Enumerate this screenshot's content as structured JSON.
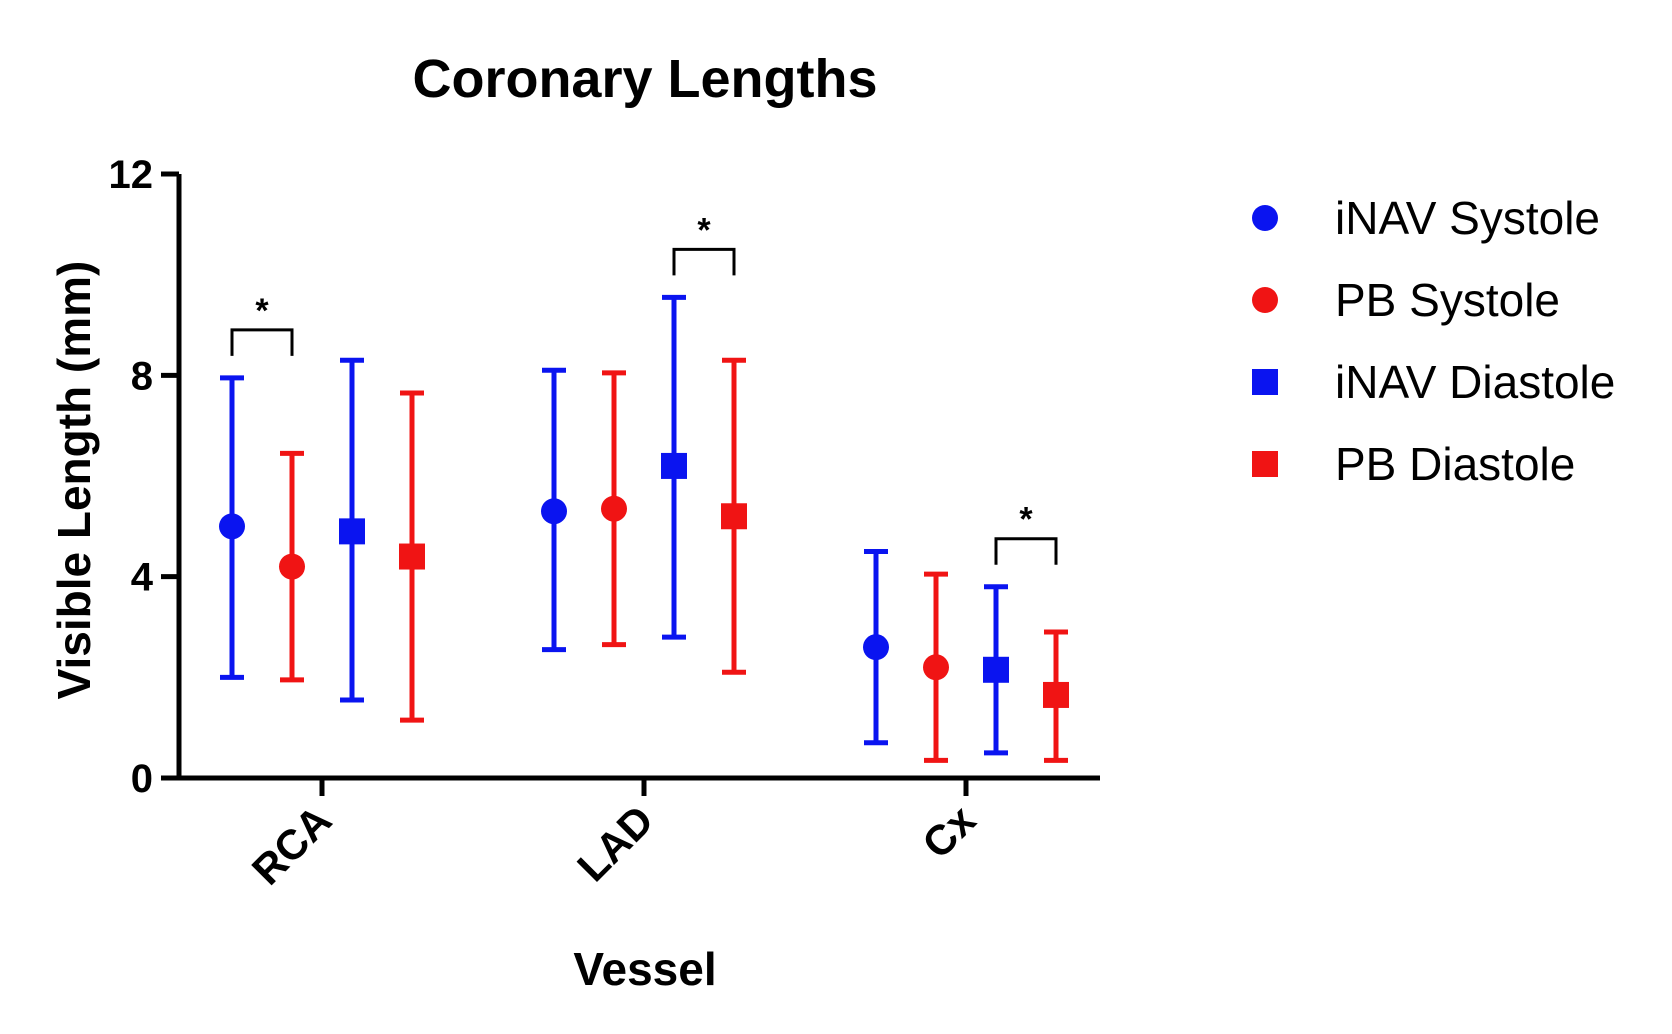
{
  "chart_data": {
    "type": "scatter",
    "title": "Coronary Lengths",
    "xlabel": "Vessel",
    "ylabel": "Visible Length (mm)",
    "ylim": [
      0,
      12
    ],
    "yticks": [
      "0",
      "4",
      "8",
      "12"
    ],
    "categories": [
      "RCA",
      "LAD",
      "Cx"
    ],
    "legend_position": "right",
    "series": [
      {
        "name": "iNAV Systole",
        "marker": "circle",
        "color": "#0a14f0",
        "values": [
          5.0,
          5.3,
          2.6
        ],
        "error_low": [
          2.0,
          2.55,
          0.7
        ],
        "error_high": [
          7.95,
          8.1,
          4.5
        ]
      },
      {
        "name": "PB Systole",
        "marker": "circle",
        "color": "#f01414",
        "values": [
          4.2,
          5.35,
          2.2
        ],
        "error_low": [
          1.95,
          2.65,
          0.35
        ],
        "error_high": [
          6.45,
          8.05,
          4.05
        ]
      },
      {
        "name": "iNAV Diastole",
        "marker": "square",
        "color": "#0a14f0",
        "values": [
          4.9,
          6.2,
          2.15
        ],
        "error_low": [
          1.55,
          2.8,
          0.5
        ],
        "error_high": [
          8.3,
          9.55,
          3.8
        ]
      },
      {
        "name": "PB Diastole",
        "marker": "square",
        "color": "#f01414",
        "values": [
          4.4,
          5.2,
          1.65
        ],
        "error_low": [
          1.15,
          2.1,
          0.35
        ],
        "error_high": [
          7.65,
          8.3,
          2.9
        ]
      }
    ],
    "significance": [
      {
        "category": "RCA",
        "series": [
          "iNAV Systole",
          "PB Systole"
        ],
        "label": "*"
      },
      {
        "category": "LAD",
        "series": [
          "iNAV Diastole",
          "PB Diastole"
        ],
        "label": "*"
      },
      {
        "category": "Cx",
        "series": [
          "iNAV Diastole",
          "PB Diastole"
        ],
        "label": "*"
      }
    ]
  }
}
